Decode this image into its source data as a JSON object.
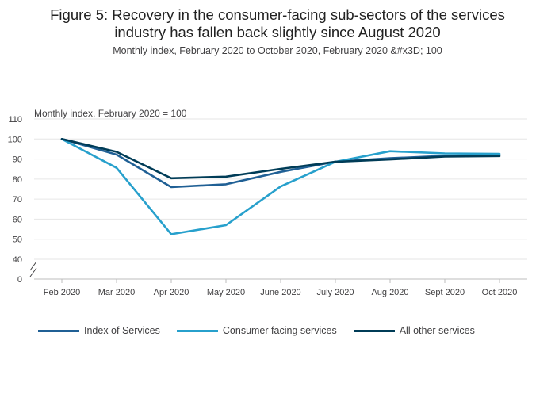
{
  "header": {
    "title_line1": "Figure 5: Recovery in the consumer-facing sub-sectors of the services",
    "title_line2": "industry has fallen back slightly since August 2020",
    "subtitle": "Monthly index, February 2020 to October 2020, February 2020 &#x3D; 100"
  },
  "chart_data": {
    "type": "line",
    "ylabel": "Monthly index, February 2020 = 100",
    "categories": [
      "Feb 2020",
      "Mar 2020",
      "Apr 2020",
      "May 2020",
      "June 2020",
      "July 2020",
      "Aug 2020",
      "Sept 2020",
      "Oct 2020"
    ],
    "ylim": [
      0,
      110
    ],
    "yticks": [
      0,
      40,
      50,
      60,
      70,
      80,
      90,
      100,
      110
    ],
    "axis_break": [
      0,
      40
    ],
    "grid": true,
    "legend_position": "bottom-left",
    "series": [
      {
        "name": "Index of Services",
        "color": "#206095",
        "values": [
          100,
          92.2,
          76.0,
          77.4,
          83.6,
          88.7,
          90.4,
          91.6,
          92.1
        ]
      },
      {
        "name": "Consumer facing services",
        "color": "#27a0cc",
        "values": [
          100,
          85.6,
          52.5,
          57.0,
          76.3,
          88.6,
          93.9,
          92.8,
          92.6
        ]
      },
      {
        "name": "All other services",
        "color": "#003c57",
        "values": [
          100,
          93.6,
          80.4,
          81.2,
          85.1,
          88.6,
          89.8,
          91.2,
          91.5
        ]
      }
    ]
  }
}
